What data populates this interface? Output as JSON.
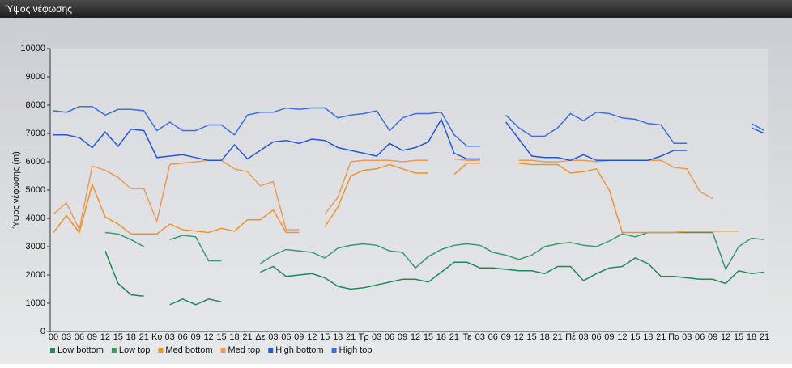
{
  "chart_data": {
    "type": "line",
    "title": "Ύψος νέφωσης",
    "ylabel": "Ύψος νέφωσης (m)",
    "categories": [
      "00",
      "03",
      "06",
      "09",
      "12",
      "15",
      "18",
      "21",
      "Κυ",
      "03",
      "06",
      "09",
      "12",
      "15",
      "18",
      "21",
      "Δε",
      "03",
      "06",
      "09",
      "12",
      "15",
      "18",
      "21",
      "Τρ",
      "03",
      "06",
      "09",
      "12",
      "15",
      "18",
      "21",
      "Τε",
      "03",
      "06",
      "09",
      "12",
      "15",
      "18",
      "21",
      "Πέ",
      "03",
      "06",
      "09",
      "12",
      "15",
      "18",
      "21",
      "Πα",
      "03",
      "06",
      "09",
      "12",
      "15",
      "18",
      "21"
    ],
    "ylim": [
      0,
      10000
    ],
    "yticks": [
      0,
      1000,
      2000,
      3000,
      4000,
      5000,
      6000,
      7000,
      8000,
      9000,
      10000
    ],
    "grid": false,
    "legend": "bottom-left",
    "series": [
      {
        "name": "Low bottom",
        "color": "#1f8a55",
        "values": [
          null,
          null,
          null,
          null,
          2850,
          1700,
          1300,
          1250,
          null,
          950,
          1150,
          950,
          1150,
          1050,
          null,
          null,
          2100,
          2300,
          1950,
          2000,
          2050,
          1900,
          1600,
          1500,
          1550,
          1650,
          1750,
          1850,
          1850,
          1750,
          2100,
          2450,
          2450,
          2250,
          2250,
          2200,
          2150,
          2150,
          2050,
          2300,
          2300,
          1800,
          2050,
          2250,
          2300,
          2600,
          2400,
          1950,
          1950,
          1900,
          1850,
          1850,
          1700,
          2150,
          2050,
          2100
        ]
      },
      {
        "name": "Low top",
        "color": "#3a9a6a",
        "values": [
          null,
          null,
          null,
          null,
          3500,
          3450,
          3250,
          3000,
          null,
          3250,
          3400,
          3350,
          2500,
          2500,
          null,
          null,
          2400,
          2700,
          2900,
          2850,
          2800,
          2600,
          2950,
          3050,
          3100,
          3050,
          2850,
          2800,
          2250,
          2650,
          2900,
          3050,
          3100,
          3050,
          2800,
          2700,
          2550,
          2700,
          3000,
          3100,
          3150,
          3050,
          3000,
          3200,
          3450,
          3350,
          3500,
          3500,
          3500,
          3500,
          3500,
          3500,
          2200,
          3000,
          3300,
          3250
        ]
      },
      {
        "name": "Med bottom",
        "color": "#f0932e",
        "values": [
          3500,
          4100,
          3500,
          5200,
          4050,
          3800,
          3450,
          3450,
          3450,
          3800,
          3600,
          3550,
          3500,
          3650,
          3550,
          3950,
          3950,
          4300,
          3500,
          3500,
          null,
          3700,
          4400,
          5500,
          5700,
          5750,
          5900,
          5750,
          5600,
          5600,
          null,
          5550,
          5950,
          5950,
          null,
          null,
          5950,
          5900,
          5900,
          5900,
          5600,
          5650,
          5750,
          5000,
          3500,
          3500,
          3500,
          3500,
          3500,
          3550,
          3550,
          3550,
          3550,
          3550,
          null,
          null
        ]
      },
      {
        "name": "Med top",
        "color": "#e99c58",
        "values": [
          4150,
          4550,
          3600,
          5850,
          5700,
          5450,
          5050,
          5050,
          3900,
          5900,
          5950,
          6000,
          6050,
          6050,
          5750,
          5650,
          5150,
          5300,
          3600,
          3600,
          null,
          4150,
          4750,
          6000,
          6050,
          6050,
          6050,
          6000,
          6050,
          6050,
          null,
          6100,
          6050,
          6050,
          null,
          null,
          6050,
          6050,
          6000,
          6000,
          6050,
          6050,
          6000,
          6050,
          6050,
          6050,
          6050,
          6050,
          5800,
          5750,
          4950,
          4700,
          null,
          null,
          null,
          null
        ]
      },
      {
        "name": "High bottom",
        "color": "#2457d6",
        "values": [
          6950,
          6950,
          6850,
          6500,
          7050,
          6550,
          7150,
          7100,
          6150,
          6200,
          6250,
          6150,
          6050,
          6050,
          6600,
          6100,
          6400,
          6700,
          6750,
          6650,
          6800,
          6750,
          6500,
          6400,
          6300,
          6200,
          6650,
          6400,
          6500,
          6700,
          7500,
          6300,
          6100,
          6100,
          null,
          7400,
          6800,
          6200,
          6150,
          6150,
          6050,
          6250,
          6050,
          6050,
          6050,
          6050,
          6050,
          6200,
          6400,
          6400,
          null,
          null,
          null,
          null,
          7200,
          7000
        ]
      },
      {
        "name": "High top",
        "color": "#3f6fdc",
        "values": [
          7800,
          7750,
          7950,
          7950,
          7650,
          7850,
          7850,
          7800,
          7100,
          7400,
          7100,
          7100,
          7300,
          7300,
          6950,
          7650,
          7750,
          7750,
          7900,
          7850,
          7900,
          7900,
          7550,
          7650,
          7700,
          7800,
          7100,
          7550,
          7700,
          7700,
          7750,
          6950,
          6550,
          6550,
          null,
          7650,
          7200,
          6900,
          6900,
          7200,
          7700,
          7450,
          7750,
          7700,
          7550,
          7500,
          7350,
          7300,
          6650,
          6650,
          null,
          null,
          null,
          null,
          7350,
          7100
        ]
      }
    ]
  }
}
